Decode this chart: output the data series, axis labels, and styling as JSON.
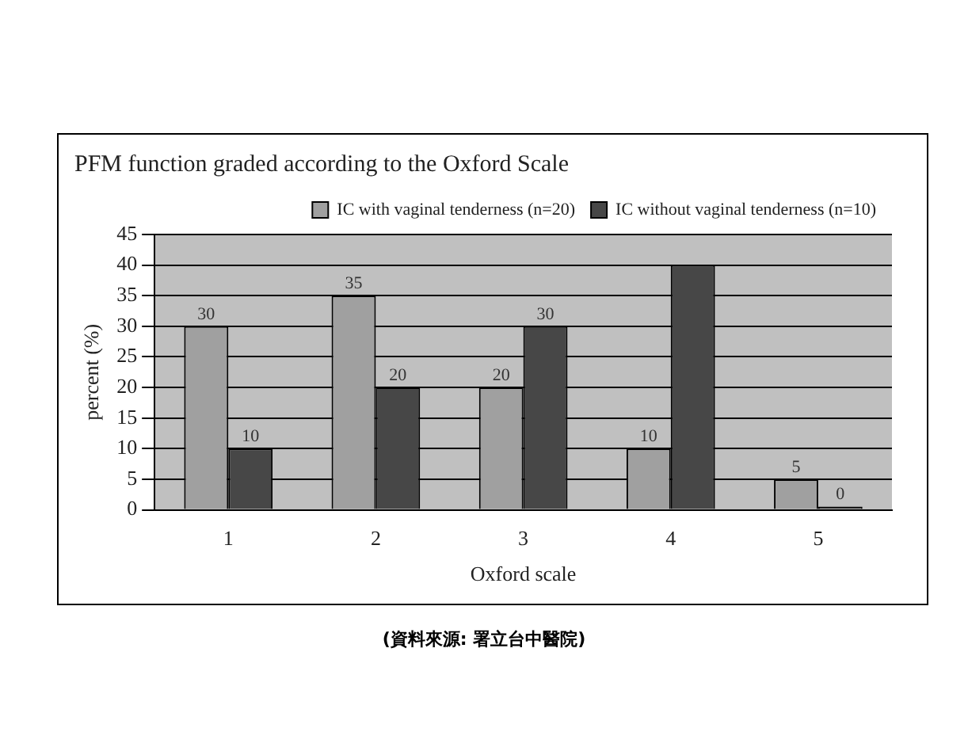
{
  "chart_data": {
    "type": "bar",
    "title": "PFM function graded according to the Oxford Scale",
    "xlabel": "Oxford scale",
    "ylabel": "percent (%)",
    "categories": [
      "1",
      "2",
      "3",
      "4",
      "5"
    ],
    "series": [
      {
        "name": "IC with vaginal tenderness (n=20)",
        "color": "#a0a0a0",
        "values": [
          30,
          35,
          20,
          10,
          5
        ],
        "value_labels": [
          "30",
          "35",
          "20",
          "10",
          "5"
        ]
      },
      {
        "name": "IC without vaginal tenderness (n=10)",
        "color": "#474747",
        "values": [
          10,
          20,
          30,
          40,
          0
        ],
        "value_labels": [
          "10",
          "20",
          "30",
          null,
          "0"
        ]
      }
    ],
    "ylim": [
      0,
      45
    ],
    "yticks": [
      0,
      5,
      10,
      15,
      20,
      25,
      30,
      35,
      40,
      45
    ],
    "grid": "y",
    "legend": "top right",
    "annotations": [
      "(資料來源: 署立台中醫院)"
    ]
  }
}
